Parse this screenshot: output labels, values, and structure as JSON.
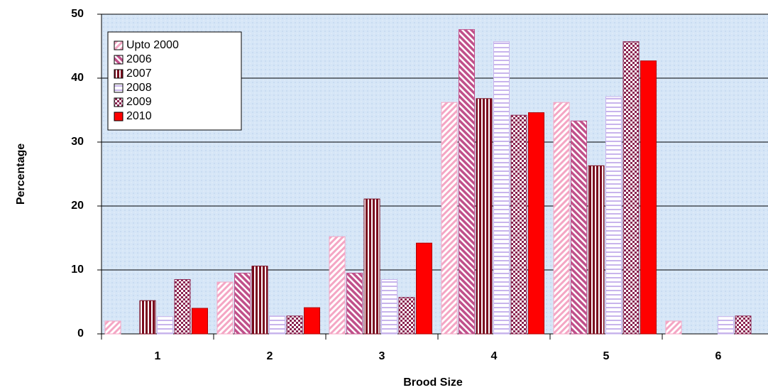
{
  "chart_data": {
    "type": "bar",
    "x_label": "Brood Size",
    "y_label": "Percentage",
    "categories": [
      "1",
      "2",
      "3",
      "4",
      "5",
      "6"
    ],
    "series": [
      {
        "name": "Upto 2000",
        "color": "#f4a6c4",
        "values": [
          2,
          8.1,
          15.2,
          36.2,
          36.2,
          2
        ]
      },
      {
        "name": "2006",
        "color": "#c0508a",
        "values": [
          0,
          9.5,
          9.5,
          47.6,
          33.3,
          0
        ]
      },
      {
        "name": "2007",
        "color": "#7a0a1e",
        "values": [
          5.2,
          10.6,
          21.1,
          36.8,
          26.3,
          0
        ]
      },
      {
        "name": "2008",
        "color": "#c8b4ec",
        "values": [
          2.7,
          2.8,
          8.5,
          45.7,
          37.1,
          2.7
        ]
      },
      {
        "name": "2009",
        "color": "#8a2450",
        "values": [
          8.5,
          2.8,
          5.7,
          34.2,
          45.7,
          2.8
        ]
      },
      {
        "name": "2010",
        "color": "#ff0000",
        "values": [
          4,
          4.1,
          14.2,
          34.6,
          42.7,
          0
        ]
      }
    ],
    "ylim": [
      0,
      50
    ],
    "yticks": [
      0,
      10,
      20,
      30,
      40,
      50
    ],
    "grid": true,
    "legend": "upper left"
  }
}
